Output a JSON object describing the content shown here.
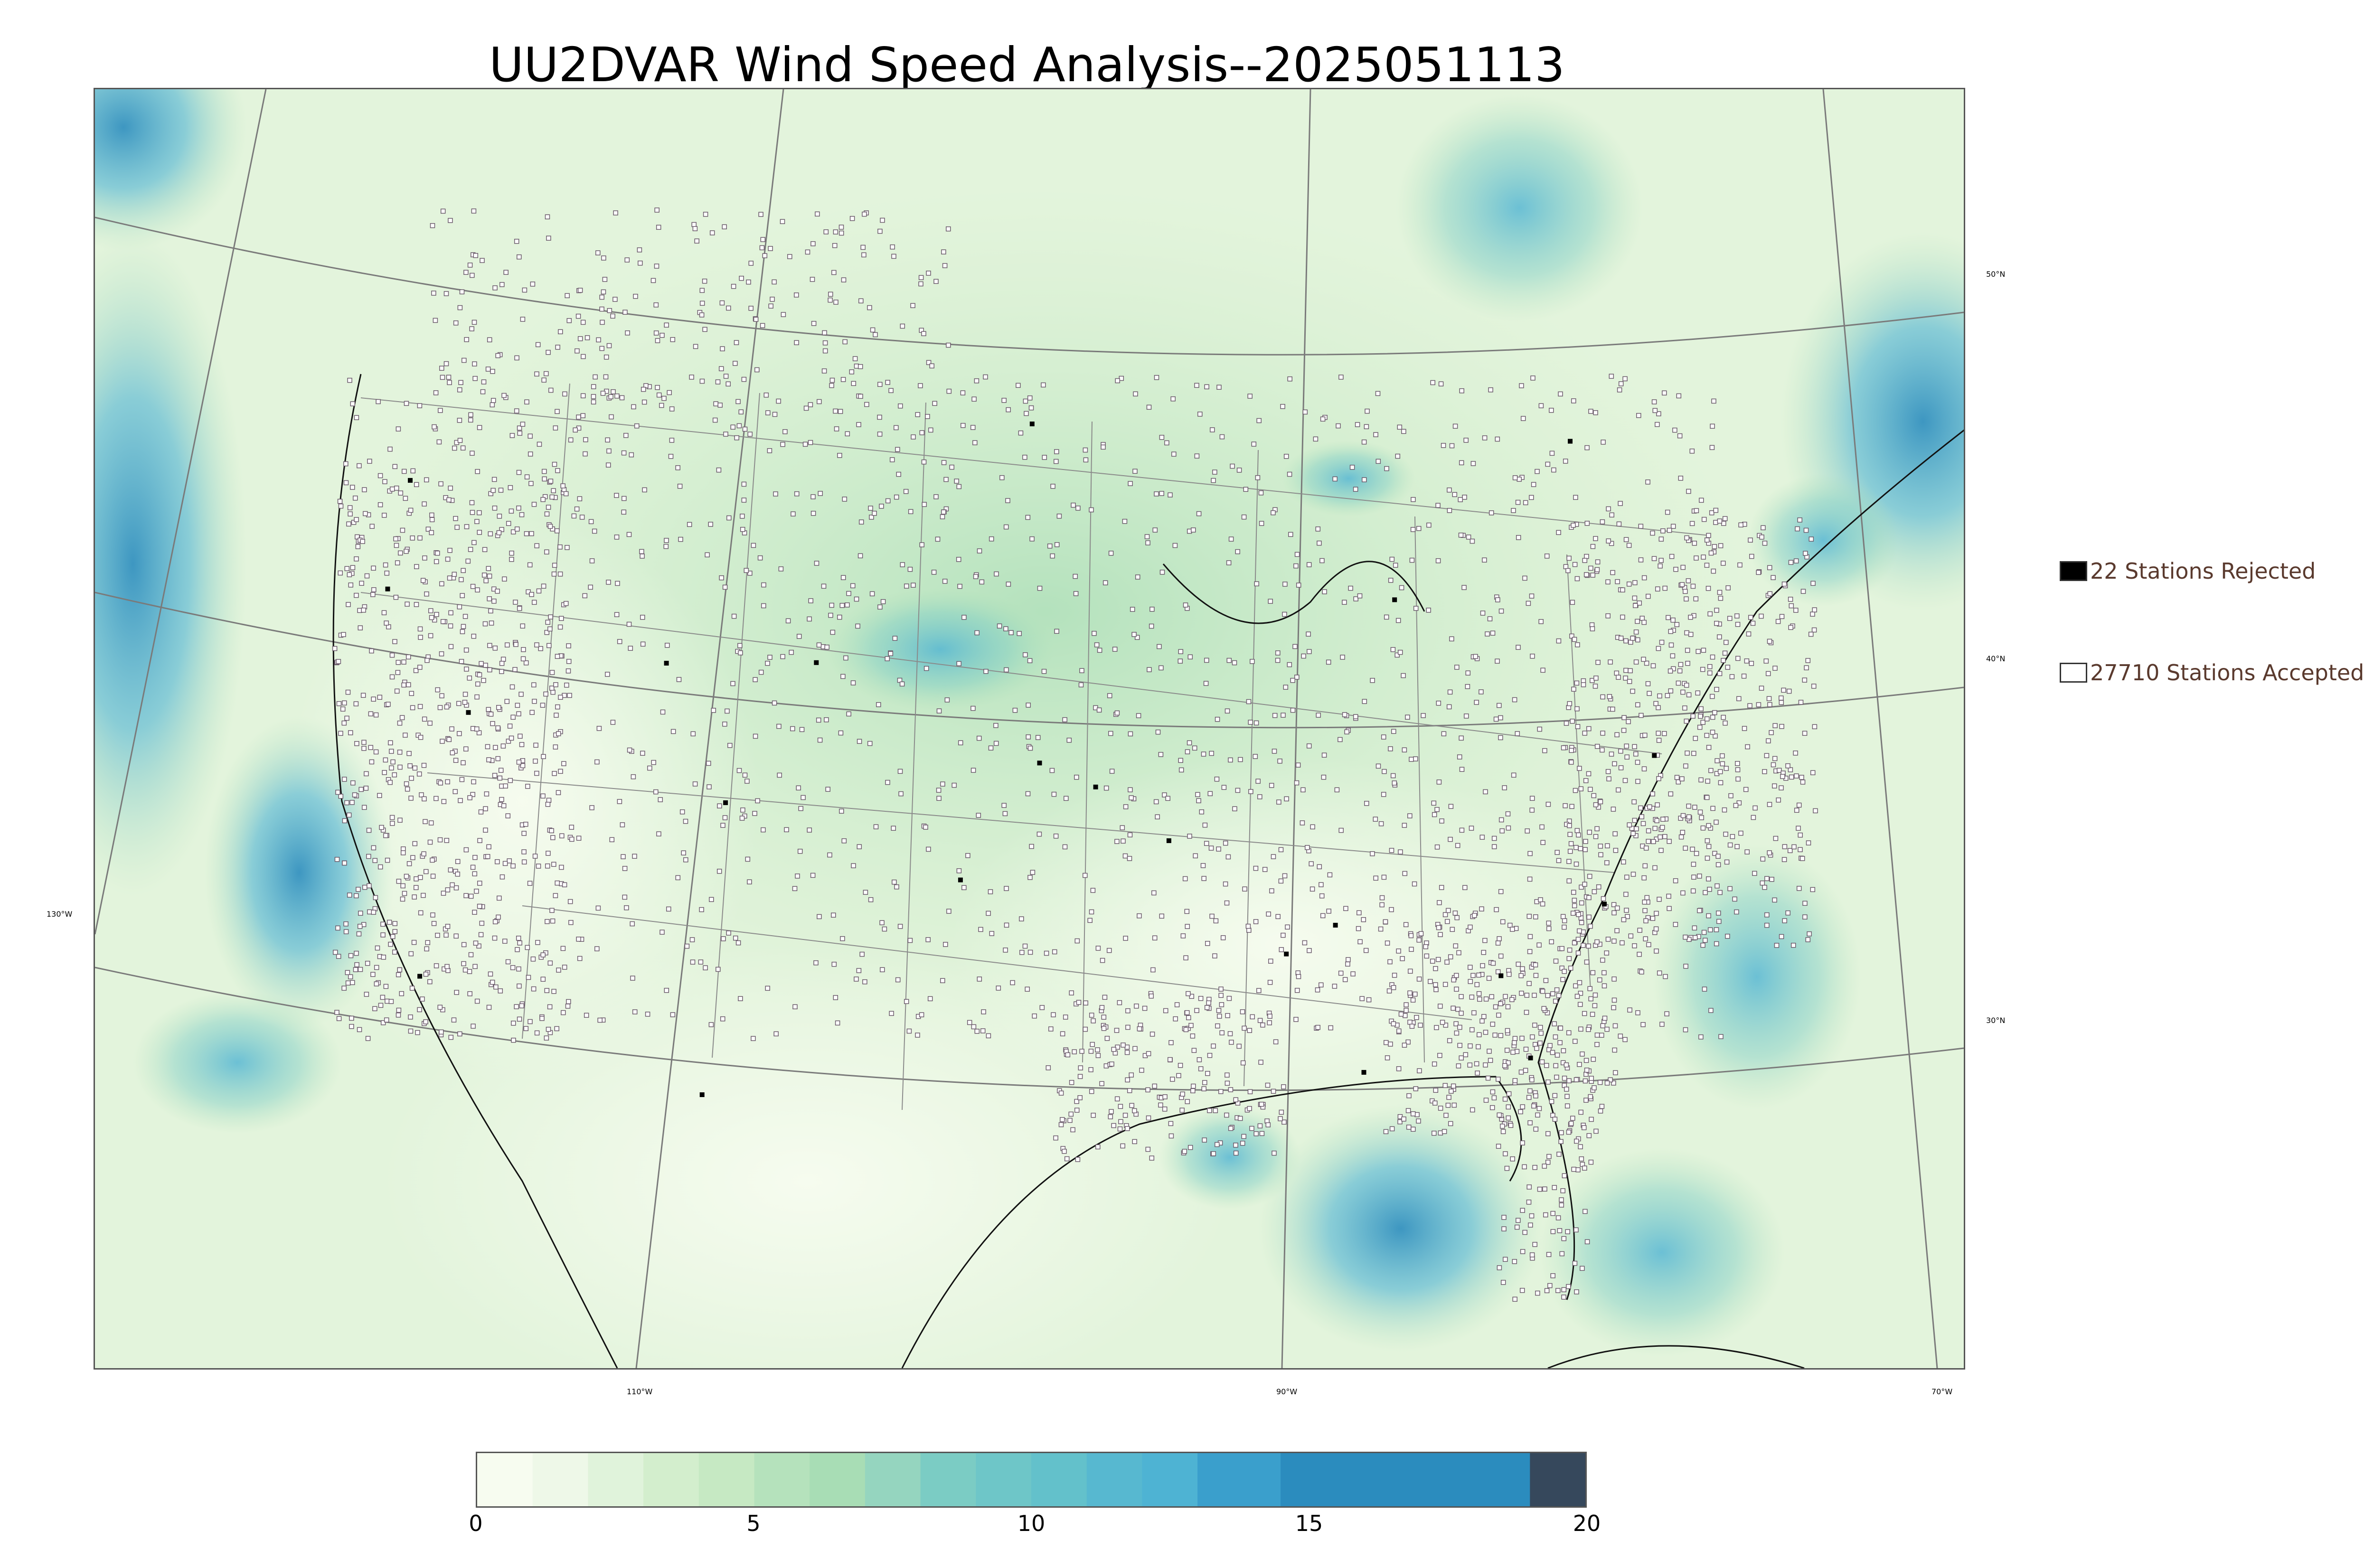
{
  "title": "UU2DVAR Wind Speed Analysis--2025051113",
  "map": {
    "lon_labels": [
      "110°W",
      "90°W",
      "70°W"
    ],
    "lat_labels": [
      "50°N",
      "40°N",
      "30°N"
    ],
    "side_lon_label": "130°W",
    "background_color": "#eef8ea",
    "state_line_color": "#7a7a7a",
    "coast_color": "#111111",
    "station_marker_color": "#ffffff"
  },
  "legend": {
    "rejected": {
      "label": "22 Stations Rejected",
      "color": "#000000"
    },
    "accepted": {
      "label": "27710 Stations Accepted",
      "color": "#ffffff"
    }
  },
  "colorbar": {
    "min": 0,
    "max": 20,
    "ticks": [
      "0",
      "5",
      "10",
      "15",
      "20"
    ],
    "tick_values": [
      0,
      5,
      10,
      15,
      20
    ],
    "segments": [
      {
        "from": 0,
        "to": 1,
        "color": "#f7fcf0"
      },
      {
        "from": 1,
        "to": 2,
        "color": "#eef8e8"
      },
      {
        "from": 2,
        "to": 3,
        "color": "#e0f3db"
      },
      {
        "from": 3,
        "to": 4,
        "color": "#d3eecd"
      },
      {
        "from": 4,
        "to": 5,
        "color": "#c6e9c3"
      },
      {
        "from": 5,
        "to": 6,
        "color": "#b5e2bc"
      },
      {
        "from": 6,
        "to": 7,
        "color": "#a8ddb5"
      },
      {
        "from": 7,
        "to": 8,
        "color": "#95d5bf"
      },
      {
        "from": 8,
        "to": 9,
        "color": "#7bccc4"
      },
      {
        "from": 9,
        "to": 10,
        "color": "#6ec6c8"
      },
      {
        "from": 10,
        "to": 11,
        "color": "#63c1cb"
      },
      {
        "from": 11,
        "to": 12,
        "color": "#57b8d0"
      },
      {
        "from": 12,
        "to": 13,
        "color": "#4eb3d3"
      },
      {
        "from": 13,
        "to": 14.5,
        "color": "#3a9fcc"
      },
      {
        "from": 14.5,
        "to": 19,
        "color": "#2b8cbe"
      },
      {
        "from": 19,
        "to": 20,
        "color": "#36485c"
      }
    ]
  },
  "chart_data": {
    "type": "heatmap",
    "title": "UU2DVAR Wind Speed Analysis--2025051113",
    "colorbar_range": [
      0,
      20
    ],
    "colorbar_ticks": [
      0,
      5,
      10,
      15,
      20
    ],
    "legend": [
      "22 Stations Rejected",
      "27710 Stations Accepted"
    ],
    "stations_rejected": 22,
    "stations_accepted": 27710
  }
}
